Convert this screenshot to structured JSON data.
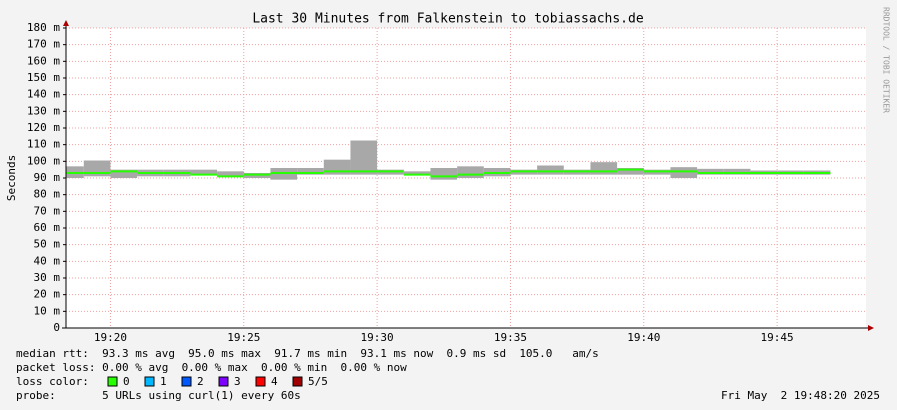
{
  "chart_data": {
    "type": "smokeping",
    "title": "Last 30 Minutes from Falkenstein to tobiassachs.de",
    "y_label": "Seconds",
    "watermark": "RRDTOOL / TOBI OETIKER",
    "x": [
      1158,
      1159,
      1160,
      1161,
      1162,
      1163,
      1164,
      1165,
      1166,
      1167,
      1168,
      1169,
      1170,
      1171,
      1172,
      1173,
      1174,
      1175,
      1176,
      1177,
      1178,
      1179,
      1180,
      1181,
      1182,
      1183,
      1184,
      1185,
      1186
    ],
    "series": [
      {
        "name": "median rtt",
        "color": "#26ff00",
        "values": [
          93,
          93,
          94,
          93,
          93,
          92,
          91,
          92,
          93,
          93,
          94,
          94,
          94,
          92,
          91,
          92,
          93,
          94,
          94,
          94,
          94,
          95,
          94,
          94,
          93,
          93,
          93,
          93,
          93
        ],
        "min": [
          90,
          91,
          90,
          91,
          91,
          92,
          91,
          90,
          89,
          92,
          92,
          92,
          92,
          92,
          89,
          90,
          91,
          92,
          92,
          92,
          92,
          92,
          92,
          90,
          92,
          92,
          92,
          92,
          92
        ],
        "max": [
          97,
          100.5,
          95,
          95,
          95,
          95,
          94,
          93,
          96,
          96,
          101,
          112.5,
          95,
          94,
          96,
          97,
          96,
          95,
          97.5,
          95,
          99.5,
          96,
          95,
          96.5,
          95.5,
          95.5,
          94.5,
          94.5,
          94.5
        ]
      }
    ],
    "xlim": [
      1158.3333,
      1188.3333
    ],
    "xticks": [
      {
        "value": 1160,
        "label": "19:20"
      },
      {
        "value": 1165,
        "label": "19:25"
      },
      {
        "value": 1170,
        "label": "19:30"
      },
      {
        "value": 1175,
        "label": "19:35"
      },
      {
        "value": 1180,
        "label": "19:40"
      },
      {
        "value": 1185,
        "label": "19:45"
      }
    ],
    "ylim": [
      0,
      180
    ],
    "yticks": [
      0,
      {
        "value": 10,
        "label": "10 m"
      },
      {
        "value": 20,
        "label": "20 m"
      },
      {
        "value": 30,
        "label": "30 m"
      },
      {
        "value": 40,
        "label": "40 m"
      },
      {
        "value": 50,
        "label": "50 m"
      },
      {
        "value": 60,
        "label": "60 m"
      },
      {
        "value": 70,
        "label": "70 m"
      },
      {
        "value": 80,
        "label": "80 m"
      },
      {
        "value": 90,
        "label": "90 m"
      },
      {
        "value": 100,
        "label": "100 m"
      },
      {
        "value": 110,
        "label": "110 m"
      },
      {
        "value": 120,
        "label": "120 m"
      },
      {
        "value": 130,
        "label": "130 m"
      },
      {
        "value": 140,
        "label": "140 m"
      },
      {
        "value": 150,
        "label": "150 m"
      },
      {
        "value": 160,
        "label": "160 m"
      },
      {
        "value": 170,
        "label": "170 m"
      },
      {
        "value": 180,
        "label": "180 m"
      }
    ],
    "grid": true,
    "stats": {
      "median_rtt": "median rtt:  93.3 ms avg  95.0 ms max  91.7 ms min  93.1 ms now  0.9 ms sd  105.0   am/s",
      "packet_loss": "packet loss: 0.00 % avg  0.00 % max  0.00 % min  0.00 % now",
      "loss_color_label": "loss color:",
      "probe": "probe:       5 URLs using curl(1) every 60s",
      "timestamp": "Fri May  2 19:48:20 2025"
    },
    "loss_colors": [
      {
        "name": "0",
        "color": "#26ff00"
      },
      {
        "name": "1",
        "color": "#00b8ff"
      },
      {
        "name": "2",
        "color": "#0059ff"
      },
      {
        "name": "3",
        "color": "#7e00ff"
      },
      {
        "name": "4",
        "color": "#ff0000"
      },
      {
        "name": "5/5",
        "color": "#a10000"
      }
    ]
  }
}
